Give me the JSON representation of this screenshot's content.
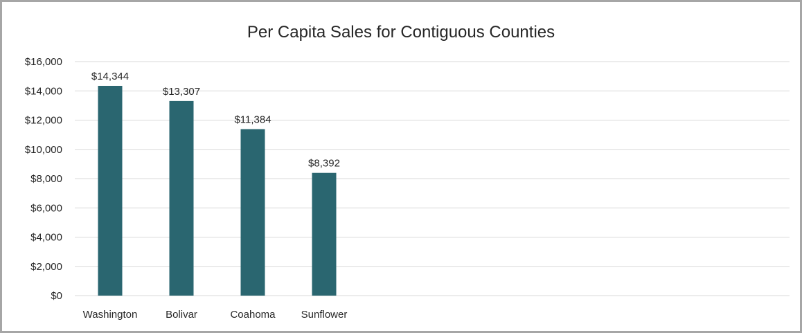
{
  "chart_data": {
    "type": "bar",
    "title": "Per Capita Sales for Contiguous Counties",
    "xlabel": "",
    "ylabel": "",
    "categories": [
      "Washington",
      "Bolivar",
      "Coahoma",
      "Sunflower"
    ],
    "values": [
      14344,
      13307,
      11384,
      8392
    ],
    "data_labels": [
      "$14,344",
      "$13,307",
      "$11,384",
      "$8,392"
    ],
    "ylim": [
      0,
      16000
    ],
    "yticks": [
      0,
      2000,
      4000,
      6000,
      8000,
      10000,
      12000,
      14000,
      16000
    ],
    "ytick_labels": [
      "$0",
      "$2,000",
      "$4,000",
      "$6,000",
      "$8,000",
      "$10,000",
      "$12,000",
      "$14,000",
      "$16,000"
    ],
    "grid": true,
    "legend": "none",
    "colors": {
      "bar": "#2a6670",
      "grid": "#d9d9d9",
      "frame": "#a6a6a6",
      "text": "#262626"
    }
  }
}
